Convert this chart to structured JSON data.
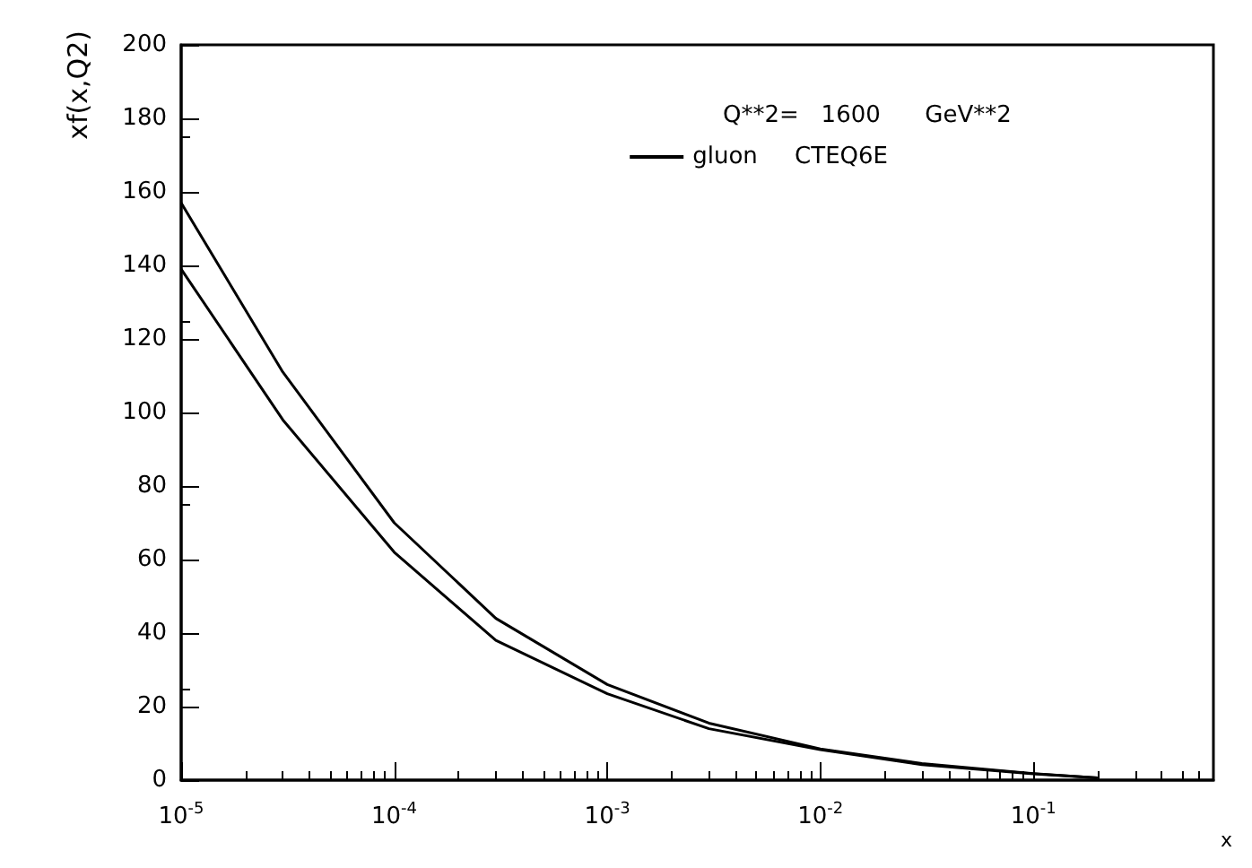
{
  "chart_data": {
    "type": "line",
    "xlabel": "x",
    "ylabel": "xf(x,Q2)",
    "annotations": [
      "Q**2=   1600      GeV**2"
    ],
    "log": "x",
    "xlim": [
      1e-05,
      0.7
    ],
    "xticks": [
      {
        "value": 1e-05,
        "label": "10$^{-5}$"
      },
      {
        "value": 0.0001,
        "label": "10$^{-4}$"
      },
      {
        "value": 0.001,
        "label": "10$^{-3}$"
      },
      {
        "value": 0.01,
        "label": "10$^{-2}$"
      },
      {
        "value": 0.1,
        "label": "10$^{-1}$"
      }
    ],
    "ylim": [
      0,
      200
    ],
    "yticks": [
      0,
      20,
      40,
      60,
      80,
      100,
      120,
      140,
      160,
      180,
      200
    ],
    "grid": false,
    "legend": "top right",
    "marker": "none",
    "line_style": "solid",
    "series": [
      {
        "name": "gluon     CTEQ6E",
        "color": "#000000",
        "x": [
          1e-05,
          3e-05,
          0.0001,
          0.0003,
          0.001,
          0.003,
          0.01,
          0.03,
          0.1,
          0.2
        ],
        "values": [
          157,
          111,
          70,
          44,
          26,
          15.5,
          8.5,
          4.5,
          1.8,
          0.6
        ]
      },
      {
        "color": "#000000",
        "x": [
          1e-05,
          3e-05,
          0.0001,
          0.0003,
          0.001,
          0.003,
          0.01,
          0.03,
          0.1,
          0.2
        ],
        "values": [
          139,
          98,
          62,
          38,
          23.5,
          14,
          8.3,
          4.2,
          1.7,
          0.6
        ]
      }
    ]
  }
}
